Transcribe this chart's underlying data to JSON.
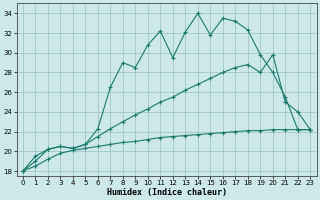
{
  "xlabel": "Humidex (Indice chaleur)",
  "xlim": [
    -0.5,
    23.5
  ],
  "ylim": [
    17.5,
    35.0
  ],
  "yticks": [
    18,
    20,
    22,
    24,
    26,
    28,
    30,
    32,
    34
  ],
  "xticks": [
    0,
    1,
    2,
    3,
    4,
    5,
    6,
    7,
    8,
    9,
    10,
    11,
    12,
    13,
    14,
    15,
    16,
    17,
    18,
    19,
    20,
    21,
    22,
    23
  ],
  "bg_color": "#cce8e8",
  "line_color": "#1a7a6e",
  "line1_x": [
    0,
    1,
    2,
    3,
    4,
    5,
    6,
    7,
    8,
    9,
    10,
    11,
    12,
    13,
    14,
    15,
    16,
    17,
    18,
    19,
    20,
    21,
    22,
    23
  ],
  "line1_y": [
    18,
    19.5,
    20.2,
    20.5,
    20.3,
    20.7,
    22.3,
    26.5,
    29.0,
    28.5,
    30.8,
    32.2,
    29.5,
    32.1,
    34.0,
    31.8,
    33.5,
    33.2,
    32.3,
    29.8,
    28.0,
    25.5,
    22.2,
    22.2
  ],
  "line2_x": [
    0,
    1,
    2,
    3,
    4,
    5,
    6,
    7,
    8,
    9,
    10,
    11,
    12,
    13,
    14,
    15,
    16,
    17,
    18,
    19,
    20,
    21,
    22,
    23
  ],
  "line2_y": [
    18,
    19.0,
    20.2,
    20.5,
    20.3,
    20.7,
    21.5,
    22.3,
    23.0,
    23.7,
    24.3,
    25.0,
    25.5,
    26.2,
    26.8,
    27.4,
    28.0,
    28.5,
    28.8,
    28.0,
    29.8,
    25.0,
    24.0,
    22.2
  ],
  "line3_x": [
    0,
    1,
    2,
    3,
    4,
    5,
    6,
    7,
    8,
    9,
    10,
    11,
    12,
    13,
    14,
    15,
    16,
    17,
    18,
    19,
    20,
    21,
    22,
    23
  ],
  "line3_y": [
    18,
    18.5,
    19.2,
    19.8,
    20.1,
    20.3,
    20.5,
    20.7,
    20.9,
    21.0,
    21.2,
    21.4,
    21.5,
    21.6,
    21.7,
    21.8,
    21.9,
    22.0,
    22.1,
    22.1,
    22.2,
    22.2,
    22.2,
    22.2
  ]
}
